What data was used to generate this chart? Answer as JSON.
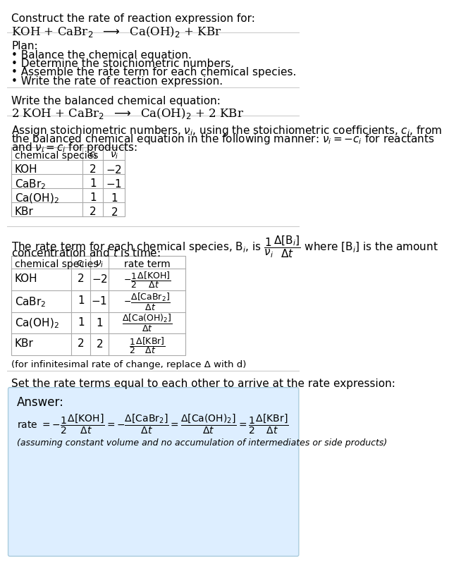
{
  "bg_color": "#ffffff",
  "answer_bg_color": "#ddeeff",
  "answer_border_color": "#aaccdd",
  "divider_color": "#cccccc",
  "text_color": "#000000",
  "title_line1": "Construct the rate of reaction expression for:",
  "plan_header": "Plan:",
  "plan_items": [
    "• Balance the chemical equation.",
    "• Determine the stoichiometric numbers.",
    "• Assemble the rate term for each chemical species.",
    "• Write the rate of reaction expression."
  ],
  "balanced_header": "Write the balanced chemical equation:",
  "stoich_line1": "Assign stoichiometric numbers, $\\nu_i$, using the stoichiometric coefficients, $c_i$, from",
  "stoich_line2": "the balanced chemical equation in the following manner: $\\nu_i = -c_i$ for reactants",
  "stoich_line3": "and $\\nu_i = c_i$ for products:",
  "rate_line1": "The rate term for each chemical species, B$_i$, is $\\dfrac{1}{\\nu_i}\\dfrac{\\Delta[\\mathrm{B}_i]}{\\Delta t}$ where [B$_i$] is the amount",
  "rate_line2": "concentration and $t$ is time:",
  "infinitesimal_note": "(for infinitesimal rate of change, replace Δ with d)",
  "set_rate_text": "Set the rate terms equal to each other to arrive at the rate expression:",
  "answer_label": "Answer:",
  "answer_note": "(assuming constant volume and no accumulation of intermediates or side products)"
}
